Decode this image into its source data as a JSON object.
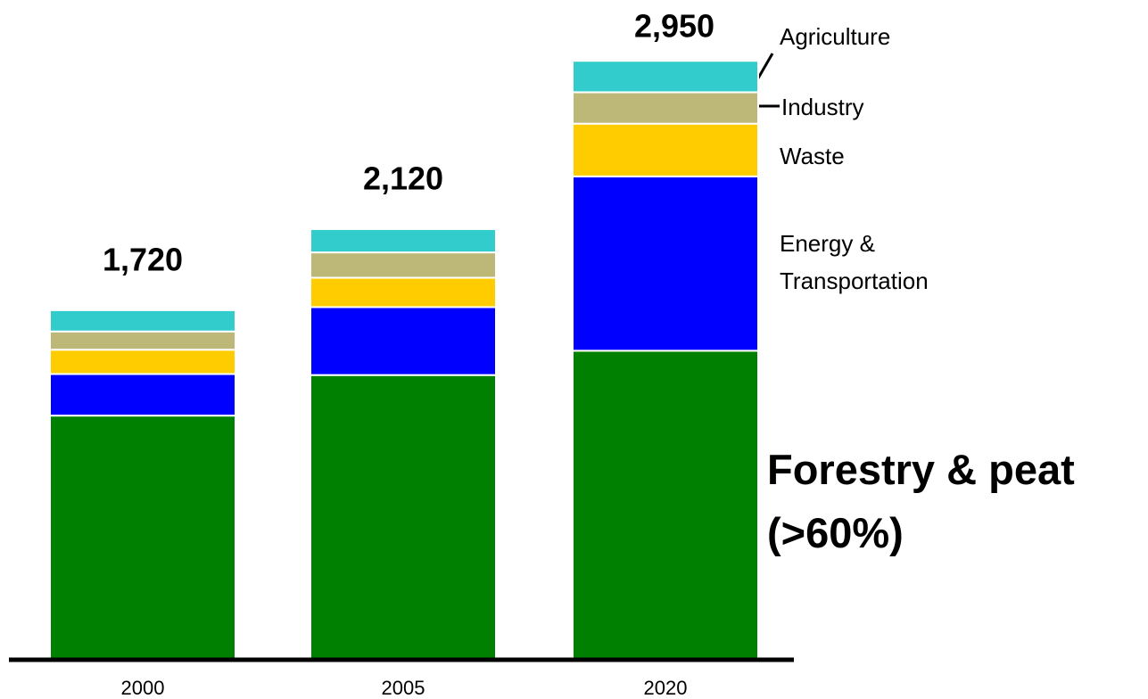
{
  "chart_data": {
    "type": "stacked-bar",
    "categories": [
      "2000",
      "2005",
      "2020"
    ],
    "total_labels": [
      "1,720",
      "2,120",
      "2,950"
    ],
    "series": [
      {
        "name": "Forestry & peat (>60%)",
        "color": "#008000",
        "values": [
          1200,
          1400,
          1520
        ]
      },
      {
        "name": "Energy & Transportation",
        "color": "#0000ff",
        "values": [
          205,
          335,
          860
        ]
      },
      {
        "name": "Waste",
        "color": "#ffcc00",
        "values": [
          120,
          145,
          260
        ]
      },
      {
        "name": "Industry",
        "color": "#bdb878",
        "values": [
          90,
          125,
          155
        ]
      },
      {
        "name": "Agriculture",
        "color": "#33cccc",
        "values": [
          105,
          115,
          155
        ]
      }
    ],
    "ylim": [
      0,
      3250
    ]
  }
}
